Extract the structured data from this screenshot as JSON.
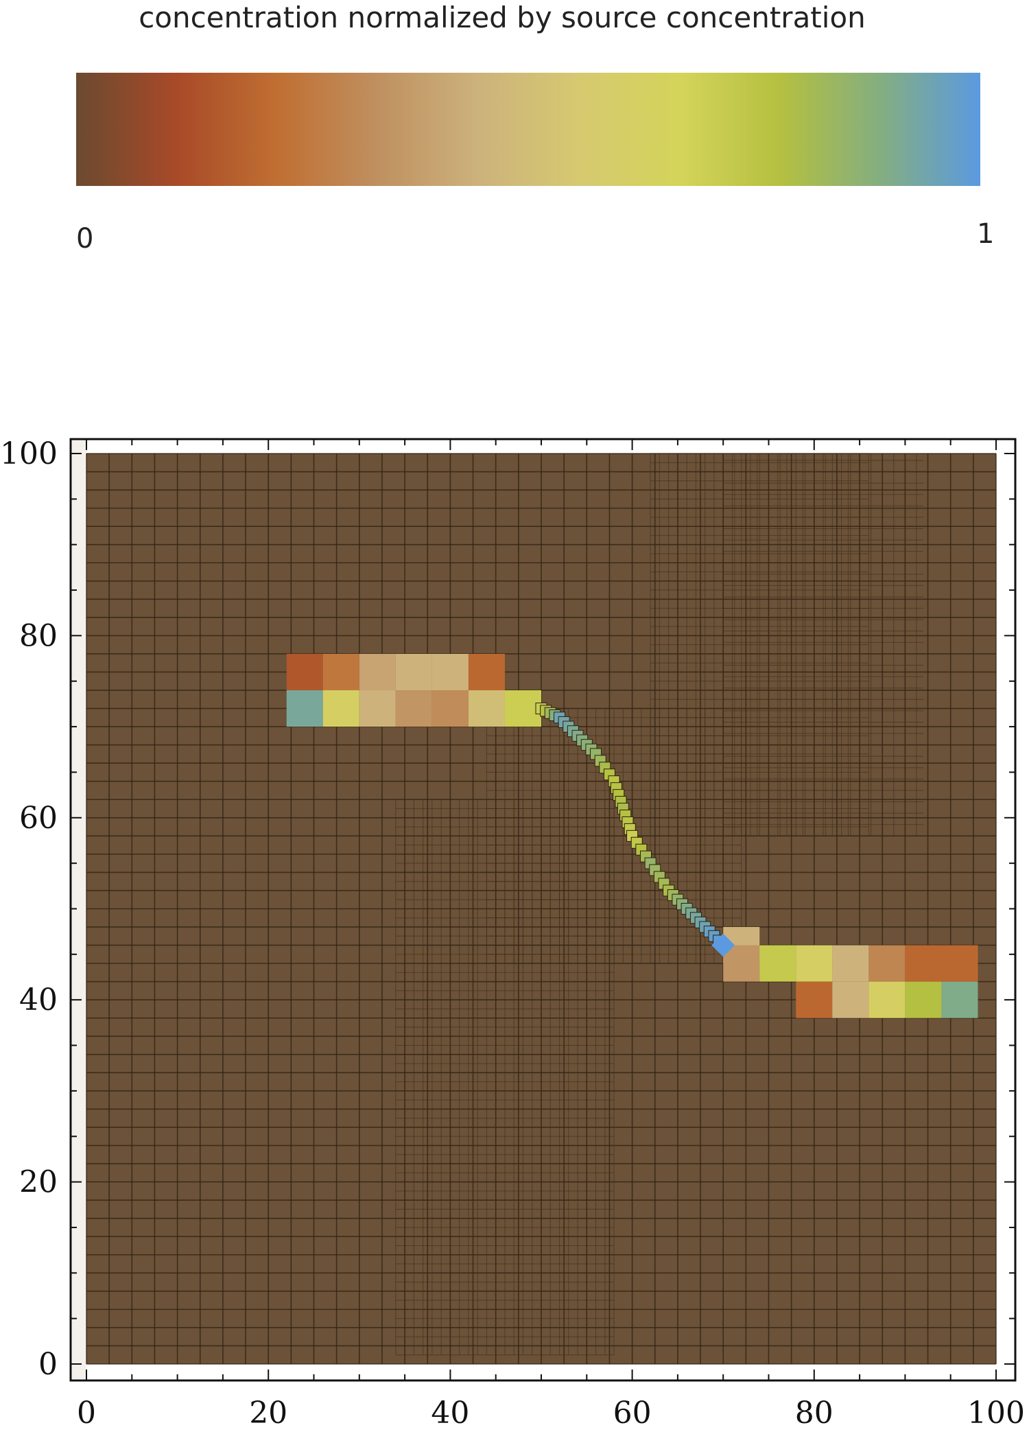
{
  "colorbar": {
    "title": "concentration normalized by source concentration",
    "min_label": "0",
    "max_label": "1",
    "colors": [
      "#6b4a30",
      "#a84a28",
      "#c06f32",
      "#bf9060",
      "#ccb27c",
      "#d6c970",
      "#d4d45a",
      "#b5c040",
      "#84ae80",
      "#5b9ae0"
    ]
  },
  "chart_data": {
    "type": "heatmap",
    "title": "",
    "xlabel": "",
    "ylabel": "",
    "xlim": [
      0,
      100
    ],
    "ylim": [
      0,
      100
    ],
    "x_ticks": [
      "0",
      "20",
      "40",
      "60",
      "80",
      "100"
    ],
    "y_ticks": [
      "0",
      "20",
      "40",
      "60",
      "80",
      "100"
    ],
    "background_value": 0,
    "background_color": "#6b5238",
    "upper_left_cells": [
      {
        "x0": 22,
        "x1": 26,
        "y0": 74,
        "y1": 78,
        "value": 0.15
      },
      {
        "x0": 26,
        "x1": 30,
        "y0": 74,
        "y1": 78,
        "value": 0.25
      },
      {
        "x0": 30,
        "x1": 34,
        "y0": 74,
        "y1": 78,
        "value": 0.4
      },
      {
        "x0": 34,
        "x1": 38,
        "y0": 74,
        "y1": 78,
        "value": 0.45
      },
      {
        "x0": 38,
        "x1": 42,
        "y0": 74,
        "y1": 78,
        "value": 0.45
      },
      {
        "x0": 42,
        "x1": 46,
        "y0": 74,
        "y1": 78,
        "value": 0.2
      },
      {
        "x0": 22,
        "x1": 26,
        "y0": 70,
        "y1": 74,
        "value": 0.92
      },
      {
        "x0": 26,
        "x1": 30,
        "y0": 70,
        "y1": 74,
        "value": 0.62
      },
      {
        "x0": 30,
        "x1": 34,
        "y0": 70,
        "y1": 74,
        "value": 0.45
      },
      {
        "x0": 34,
        "x1": 38,
        "y0": 70,
        "y1": 74,
        "value": 0.35
      },
      {
        "x0": 38,
        "x1": 42,
        "y0": 70,
        "y1": 74,
        "value": 0.32
      },
      {
        "x0": 42,
        "x1": 46,
        "y0": 70,
        "y1": 74,
        "value": 0.5
      },
      {
        "x0": 46,
        "x1": 50,
        "y0": 70,
        "y1": 74,
        "value": 0.7
      }
    ],
    "lower_right_cells": [
      {
        "x0": 70,
        "x1": 74,
        "y0": 44,
        "y1": 48,
        "value": 0.45
      },
      {
        "x0": 70,
        "x1": 74,
        "y0": 42,
        "y1": 46,
        "value": 0.35
      },
      {
        "x0": 74,
        "x1": 78,
        "y0": 42,
        "y1": 46,
        "value": 0.72
      },
      {
        "x0": 78,
        "x1": 82,
        "y0": 42,
        "y1": 46,
        "value": 0.62
      },
      {
        "x0": 82,
        "x1": 86,
        "y0": 42,
        "y1": 46,
        "value": 0.45
      },
      {
        "x0": 86,
        "x1": 90,
        "y0": 42,
        "y1": 46,
        "value": 0.3
      },
      {
        "x0": 90,
        "x1": 94,
        "y0": 42,
        "y1": 46,
        "value": 0.2
      },
      {
        "x0": 94,
        "x1": 98,
        "y0": 42,
        "y1": 46,
        "value": 0.2
      },
      {
        "x0": 78,
        "x1": 82,
        "y0": 38,
        "y1": 42,
        "value": 0.2
      },
      {
        "x0": 82,
        "x1": 86,
        "y0": 38,
        "y1": 42,
        "value": 0.45
      },
      {
        "x0": 86,
        "x1": 90,
        "y0": 38,
        "y1": 42,
        "value": 0.62
      },
      {
        "x0": 90,
        "x1": 94,
        "y0": 38,
        "y1": 42,
        "value": 0.78
      },
      {
        "x0": 94,
        "x1": 98,
        "y0": 38,
        "y1": 42,
        "value": 0.9
      }
    ],
    "fracture_path": [
      {
        "x": 50,
        "y": 72,
        "value": 0.7
      },
      {
        "x": 52,
        "y": 71,
        "value": 0.95
      },
      {
        "x": 54,
        "y": 69,
        "value": 0.9
      },
      {
        "x": 56,
        "y": 67,
        "value": 0.85
      },
      {
        "x": 58,
        "y": 64,
        "value": 0.75
      },
      {
        "x": 59,
        "y": 61,
        "value": 0.8
      },
      {
        "x": 60,
        "y": 58,
        "value": 0.7
      },
      {
        "x": 62,
        "y": 55,
        "value": 0.85
      },
      {
        "x": 64,
        "y": 52,
        "value": 0.8
      },
      {
        "x": 66,
        "y": 50,
        "value": 0.9
      },
      {
        "x": 68,
        "y": 48,
        "value": 0.95
      },
      {
        "x": 70,
        "y": 46,
        "value": 1.0
      }
    ]
  }
}
